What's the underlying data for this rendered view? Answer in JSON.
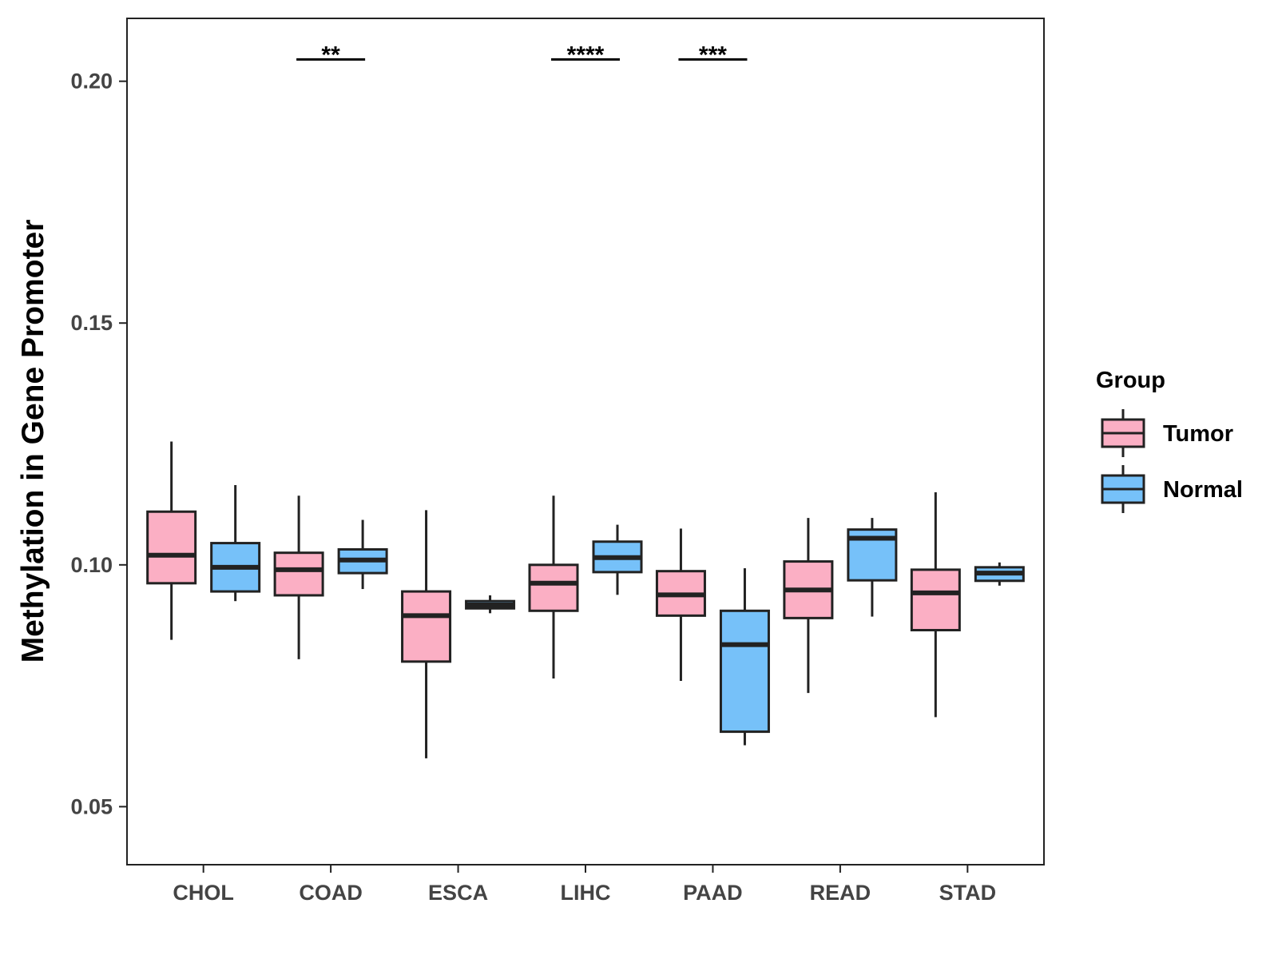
{
  "chart_data": {
    "type": "boxplot",
    "title": "",
    "xlabel": "",
    "ylabel": "Methylation in Gene Promoter",
    "ylim": [
      0.038,
      0.213
    ],
    "yticks": [
      0.05,
      0.1,
      0.15,
      0.2
    ],
    "ytick_labels": [
      "0.05",
      "0.10",
      "0.15",
      "0.20"
    ],
    "grid": false,
    "categories": [
      "CHOL",
      "COAD",
      "ESCA",
      "LIHC",
      "PAAD",
      "READ",
      "STAD"
    ],
    "legend": {
      "title": "Group",
      "placement": "right",
      "entries": [
        {
          "name": "Tumor",
          "color": "#FBAFC4"
        },
        {
          "name": "Normal",
          "color": "#76C1F9"
        }
      ]
    },
    "series": [
      {
        "name": "Tumor",
        "color": "#FBAFC4",
        "boxes": [
          {
            "min": 0.0845,
            "q1": 0.0962,
            "median": 0.102,
            "q3": 0.111,
            "max": 0.1255
          },
          {
            "min": 0.0805,
            "q1": 0.0937,
            "median": 0.099,
            "q3": 0.1025,
            "max": 0.1143
          },
          {
            "min": 0.06,
            "q1": 0.08,
            "median": 0.0895,
            "q3": 0.0945,
            "max": 0.1113
          },
          {
            "min": 0.0765,
            "q1": 0.0905,
            "median": 0.0962,
            "q3": 0.1,
            "max": 0.1143
          },
          {
            "min": 0.076,
            "q1": 0.0895,
            "median": 0.0938,
            "q3": 0.0987,
            "max": 0.1075
          },
          {
            "min": 0.0735,
            "q1": 0.089,
            "median": 0.0948,
            "q3": 0.1007,
            "max": 0.1097
          },
          {
            "min": 0.0685,
            "q1": 0.0865,
            "median": 0.0942,
            "q3": 0.099,
            "max": 0.115
          }
        ]
      },
      {
        "name": "Normal",
        "color": "#76C1F9",
        "boxes": [
          {
            "min": 0.0925,
            "q1": 0.0945,
            "median": 0.0995,
            "q3": 0.1045,
            "max": 0.1165
          },
          {
            "min": 0.095,
            "q1": 0.0983,
            "median": 0.101,
            "q3": 0.1032,
            "max": 0.1093
          },
          {
            "min": 0.09,
            "q1": 0.091,
            "median": 0.0917,
            "q3": 0.0925,
            "max": 0.0937
          },
          {
            "min": 0.0938,
            "q1": 0.0985,
            "median": 0.1015,
            "q3": 0.1048,
            "max": 0.1083
          },
          {
            "min": 0.0627,
            "q1": 0.0655,
            "median": 0.0835,
            "q3": 0.0905,
            "max": 0.0993
          },
          {
            "min": 0.0893,
            "q1": 0.0968,
            "median": 0.1055,
            "q3": 0.1073,
            "max": 0.1097
          },
          {
            "min": 0.0957,
            "q1": 0.0967,
            "median": 0.0983,
            "q3": 0.0995,
            "max": 0.1005
          }
        ]
      }
    ],
    "annotations": [
      {
        "category": "COAD",
        "label": "**",
        "y": 0.2045
      },
      {
        "category": "LIHC",
        "label": "****",
        "y": 0.2045
      },
      {
        "category": "PAAD",
        "label": "***",
        "y": 0.2045
      }
    ]
  }
}
